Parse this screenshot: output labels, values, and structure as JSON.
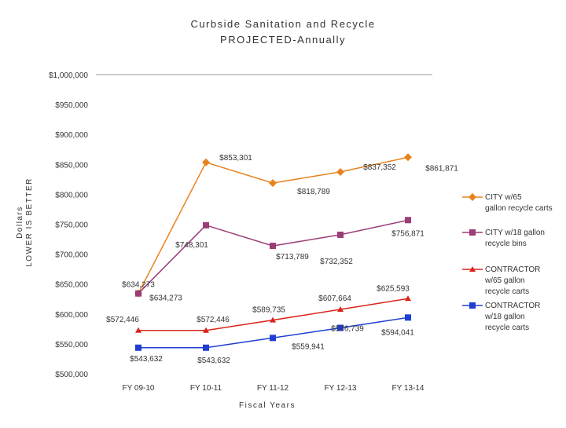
{
  "chart_data": {
    "type": "line",
    "title": "Curbside Sanitation and Recycle",
    "subtitle": "PROJECTED-Annually",
    "xlabel": "Fiscal Years",
    "ylabel_line1": "Dollars",
    "ylabel_line2": "LOWER IS BETTER",
    "ylim": [
      500000,
      1000000
    ],
    "ytick_step": 50000,
    "ytick_labels": [
      "$500,000",
      "$550,000",
      "$600,000",
      "$650,000",
      "$700,000",
      "$750,000",
      "$800,000",
      "$850,000",
      "$900,000",
      "$950,000",
      "$1,000,000"
    ],
    "grid": false,
    "legend_position": "right",
    "categories": [
      "FY 09-10",
      "FY 10-11",
      "FY 11-12",
      "FY 12-13",
      "FY 13-14"
    ],
    "series": [
      {
        "name": "CITY w/65 gallon recycle carts",
        "legend_lines": [
          "CITY      w/65",
          "gallon recycle carts"
        ],
        "color": "#E8821F",
        "marker": "diamond",
        "values": [
          634273,
          853301,
          818789,
          837352,
          861871
        ],
        "labels": [
          "$634,273",
          "$853,301",
          "$818,789",
          "$837,352",
          "$861,871"
        ]
      },
      {
        "name": "CITY w/18 gallon recycle bins",
        "legend_lines": [
          "CITY    w/18 gallon",
          "recycle bins"
        ],
        "color": "#9B3D77",
        "marker": "square",
        "values": [
          634273,
          748301,
          713789,
          732352,
          756871
        ],
        "labels": [
          "$634,273",
          "$748,301",
          "$713,789",
          "$732,352",
          "$756,871"
        ]
      },
      {
        "name": "CONTRACTOR w/65 gallon recycle carts",
        "legend_lines": [
          "CONTRACTOR",
          "w/65 gallon",
          "recycle carts"
        ],
        "color": "#D9241C",
        "marker": "triangle",
        "values": [
          572446,
          572446,
          589735,
          607664,
          625593
        ],
        "labels": [
          "$572,446",
          "$572,446",
          "$589,735",
          "$607,664",
          "$625,593"
        ]
      },
      {
        "name": "CONTRACTOR w/18 gallon recycle carts",
        "legend_lines": [
          "CONTRACTOR",
          "w/18 gallon",
          "recycle carts"
        ],
        "color": "#1F3FD1",
        "marker": "square",
        "values": [
          543632,
          543632,
          559941,
          576739,
          594041
        ],
        "labels": [
          "$543,632",
          "$543,632",
          "$559,941",
          "$576,739",
          "$594,041"
        ]
      }
    ]
  }
}
